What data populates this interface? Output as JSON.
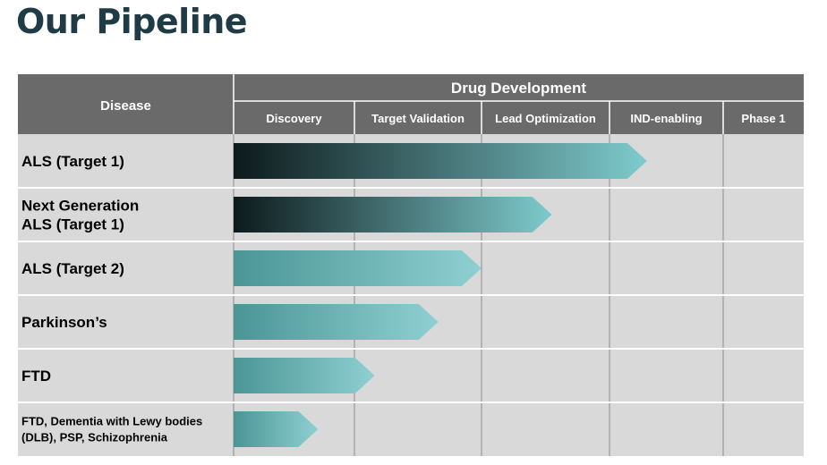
{
  "page_title": "Our Pipeline",
  "chart_data": {
    "type": "bar",
    "orientation": "horizontal",
    "header": {
      "disease_label": "Disease",
      "group_label": "Drug Development"
    },
    "stages": [
      "Discovery",
      "Target Validation",
      "Lead Optimization",
      "IND-enabling",
      "Phase 1"
    ],
    "rows": [
      {
        "lines": [
          "ALS (Target 1)"
        ],
        "progress": 3.33,
        "style": "dark"
      },
      {
        "lines": [
          "Next Generation",
          "ALS (Target 1)"
        ],
        "progress": 2.55,
        "style": "dark"
      },
      {
        "lines": [
          "ALS (Target 2)"
        ],
        "progress": 2.0,
        "style": "teal"
      },
      {
        "lines": [
          "Parkinson’s"
        ],
        "progress": 1.66,
        "style": "teal"
      },
      {
        "lines": [
          "FTD"
        ],
        "progress": 1.16,
        "style": "teal"
      },
      {
        "lines": [
          "FTD, Dementia with Lewy bodies",
          "(DLB), PSP, Schizophrenia"
        ],
        "progress": 0.7,
        "style": "teal"
      }
    ],
    "progress_unit": "stages completed",
    "colors": {
      "header_bg": "#6a6a6a",
      "row_bg": "#d9d9d9",
      "grid": "#8c8c8c",
      "bar_dark_start": "#0d1a1c",
      "bar_dark_end": "#7ecbcd",
      "bar_teal_start": "#4b9596",
      "bar_teal_end": "#8fd0d2"
    }
  }
}
